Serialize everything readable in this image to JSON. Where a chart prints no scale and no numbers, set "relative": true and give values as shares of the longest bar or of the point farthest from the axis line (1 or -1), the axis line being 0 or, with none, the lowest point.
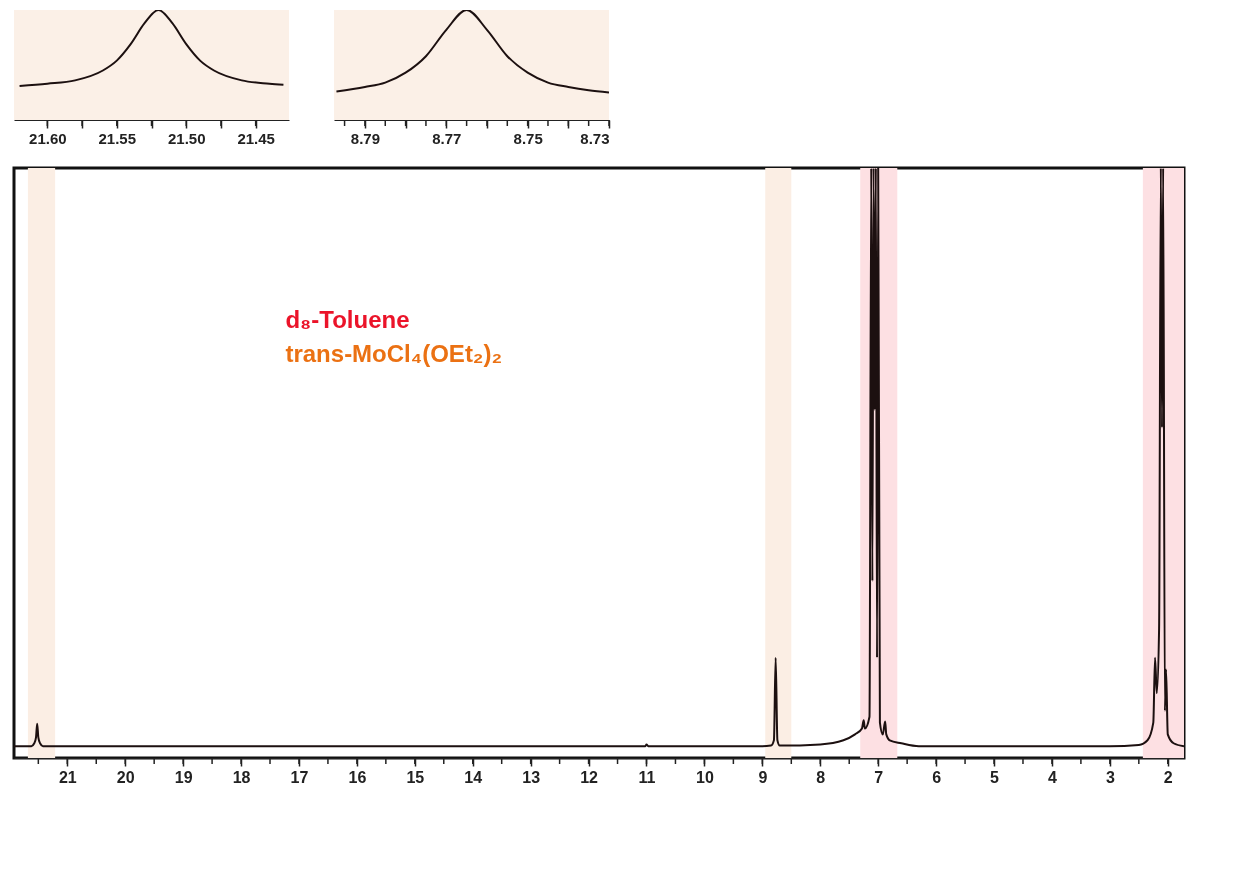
{
  "chart_data": [
    {
      "type": "line",
      "relative": true,
      "xlim": [
        21.92,
        1.72
      ],
      "xticks": [
        21,
        {
          "value": 20.5,
          "label": null
        },
        20,
        {
          "value": 19.5,
          "label": null
        },
        19,
        {
          "value": 18.5,
          "label": null
        },
        18,
        {
          "value": 17.5,
          "label": null
        },
        17,
        {
          "value": 16.5,
          "label": null
        },
        16,
        {
          "value": 15.5,
          "label": null
        },
        15,
        {
          "value": 14.5,
          "label": null
        },
        14,
        {
          "value": 13.5,
          "label": null
        },
        13,
        {
          "value": 12.5,
          "label": null
        },
        12,
        {
          "value": 11.5,
          "label": null
        },
        11,
        {
          "value": 10.5,
          "label": null
        },
        10,
        {
          "value": 9.5,
          "label": null
        },
        9,
        {
          "value": 8.5,
          "label": null
        },
        8,
        {
          "value": 7.5,
          "label": null
        },
        7,
        {
          "value": 6.5,
          "label": null
        },
        6,
        {
          "value": 5.5,
          "label": null
        },
        5,
        {
          "value": 4.5,
          "label": null
        },
        4,
        {
          "value": 3.5,
          "label": null
        },
        3,
        {
          "value": 2.5,
          "label": null
        },
        2,
        {
          "value": 21.5,
          "label": null
        }
      ],
      "x": [
        21.92,
        21.62,
        21.57,
        21.54,
        21.52,
        21.5,
        21.47,
        21.42,
        15.0,
        11.02,
        11.0,
        10.97,
        9.0,
        8.85,
        8.8,
        8.77,
        8.74,
        8.7,
        8.0,
        7.6,
        7.4,
        7.28,
        7.25,
        7.23,
        7.15,
        7.12,
        7.1,
        7.08,
        7.06,
        7.04,
        7.02,
        7.0,
        6.97,
        6.92,
        6.88,
        6.86,
        6.8,
        6.6,
        6.3,
        3.0,
        2.5,
        2.35,
        2.25,
        2.22,
        2.19,
        2.15,
        2.12,
        2.1,
        2.08,
        2.05,
        2.03,
        2.0,
        1.9,
        1.72
      ],
      "series": [
        {
          "color": "#1c1010",
          "values": [
            0.02,
            0.02,
            0.025,
            0.035,
            0.058,
            0.035,
            0.025,
            0.02,
            0.02,
            0.02,
            0.023,
            0.02,
            0.02,
            0.021,
            0.03,
            0.17,
            0.03,
            0.021,
            0.023,
            0.03,
            0.04,
            0.05,
            0.064,
            0.05,
            0.07,
            1,
            0.3,
            1,
            0.59,
            1,
            0.17,
            1,
            0.06,
            0.04,
            0.062,
            0.04,
            0.03,
            0.025,
            0.02,
            0.02,
            0.022,
            0.03,
            0.06,
            0.17,
            0.11,
            0.22,
            1,
            0.56,
            1,
            0.08,
            0.15,
            0.04,
            0.025,
            0.02
          ]
        }
      ],
      "bands": [
        {
          "axis": "x",
          "from": 21.68,
          "to": 21.21,
          "color": "#fbeee4"
        },
        {
          "axis": "x",
          "from": 8.95,
          "to": 8.5,
          "color": "#fbeee4"
        },
        {
          "axis": "x",
          "from": 7.31,
          "to": 6.67,
          "color": "#fde0e3"
        },
        {
          "axis": "x",
          "from": 2.43,
          "to": 1.72,
          "color": "#fde0e3"
        }
      ],
      "annotations": [
        "d₈-Toluene",
        "trans-MoCl₄(OEt₂)₂"
      ]
    },
    {
      "type": "line",
      "relative": true,
      "xlim": [
        21.624,
        21.426
      ],
      "xticks": [
        {
          "value": 21.6,
          "label": "21.60"
        },
        {
          "value": 21.575,
          "label": null
        },
        21.55,
        {
          "value": 21.525,
          "label": null
        },
        {
          "value": 21.5,
          "label": "21.50"
        },
        {
          "value": 21.475,
          "label": null
        },
        21.45
      ],
      "x": [
        21.62,
        21.6,
        21.58,
        21.56,
        21.55,
        21.54,
        21.53,
        21.52,
        21.51,
        21.5,
        21.49,
        21.48,
        21.46,
        21.44,
        21.43
      ],
      "series": [
        {
          "color": "#1c1010",
          "values": [
            0.31,
            0.33,
            0.36,
            0.45,
            0.54,
            0.69,
            0.88,
            1,
            0.88,
            0.69,
            0.54,
            0.45,
            0.36,
            0.33,
            0.32
          ]
        }
      ]
    },
    {
      "type": "line",
      "relative": true,
      "xlim": [
        8.7976,
        8.73
      ],
      "xticks": [
        {
          "value": 8.795,
          "label": null
        },
        8.79,
        {
          "value": 8.785,
          "label": null
        },
        {
          "value": 8.78,
          "label": null
        },
        {
          "value": 8.775,
          "label": null
        },
        8.77,
        {
          "value": 8.765,
          "label": null
        },
        {
          "value": 8.76,
          "label": null
        },
        {
          "value": 8.755,
          "label": null
        },
        8.75,
        {
          "value": 8.745,
          "label": null
        },
        {
          "value": 8.74,
          "label": null
        },
        {
          "value": 8.735,
          "label": null
        },
        8.73
      ],
      "x": [
        8.797,
        8.79,
        8.785,
        8.78,
        8.775,
        8.77,
        8.765,
        8.76,
        8.755,
        8.75,
        8.745,
        8.74,
        8.735,
        8.73
      ],
      "series": [
        {
          "color": "#1c1010",
          "values": [
            0.26,
            0.3,
            0.34,
            0.43,
            0.58,
            0.82,
            1,
            0.82,
            0.58,
            0.43,
            0.34,
            0.3,
            0.27,
            0.25
          ]
        }
      ]
    }
  ]
}
